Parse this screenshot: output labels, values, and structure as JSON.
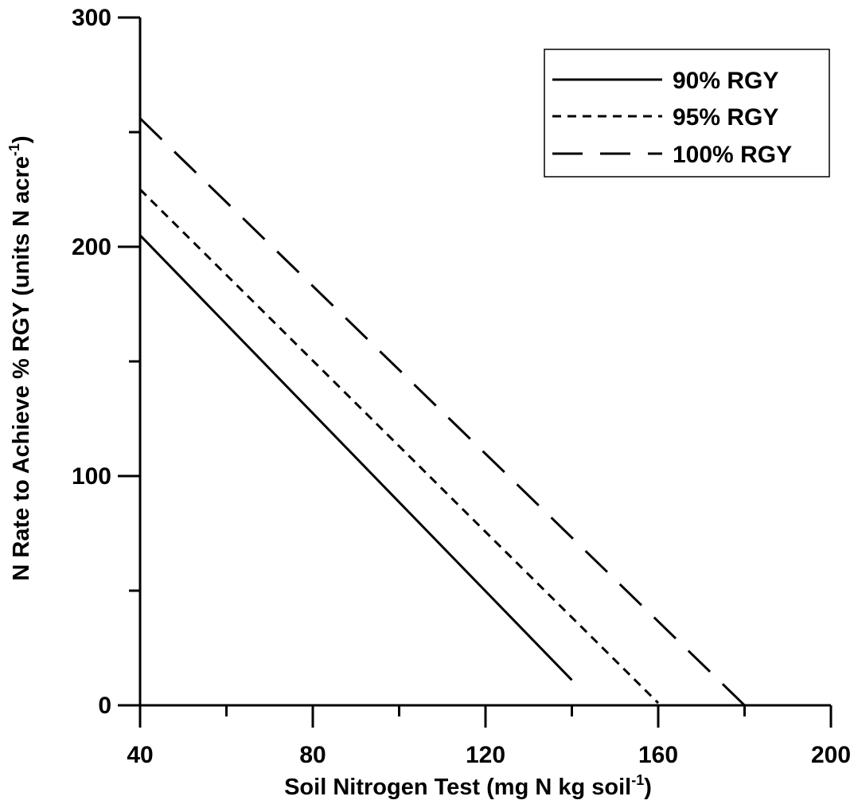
{
  "chart_data": {
    "type": "line",
    "title": "",
    "xlabel": "Soil Nitrogen Test (mg N kg soil",
    "xlabel_sup": "-1",
    "xlabel_end": ")",
    "ylabel": "N Rate to Achieve % RGY (units N acre",
    "ylabel_sup": "-1",
    "ylabel_end": ")",
    "xlim": [
      40,
      200
    ],
    "ylim": [
      0,
      300
    ],
    "x_ticks": [
      40,
      80,
      120,
      160,
      200
    ],
    "x_tick_labels": [
      "40",
      "80",
      "120",
      "160",
      "200"
    ],
    "x_minor_ticks": [
      60,
      100,
      140,
      180
    ],
    "y_ticks": [
      0,
      100,
      200,
      300
    ],
    "y_tick_labels": [
      "0",
      "100",
      "200",
      "300"
    ],
    "y_minor_ticks": [
      50,
      150,
      250
    ],
    "grid": false,
    "legend_position": "top-right",
    "series": [
      {
        "name": "90% RGY",
        "style": "solid",
        "x": [
          40,
          140
        ],
        "y": [
          205,
          11
        ]
      },
      {
        "name": "95% RGY",
        "style": "dashed",
        "x": [
          40,
          160
        ],
        "y": [
          225,
          1
        ]
      },
      {
        "name": "100% RGY",
        "style": "long-dashed",
        "x": [
          40,
          180
        ],
        "y": [
          256,
          0
        ]
      }
    ]
  },
  "colors": {
    "line": "#000000",
    "background": "#ffffff"
  }
}
